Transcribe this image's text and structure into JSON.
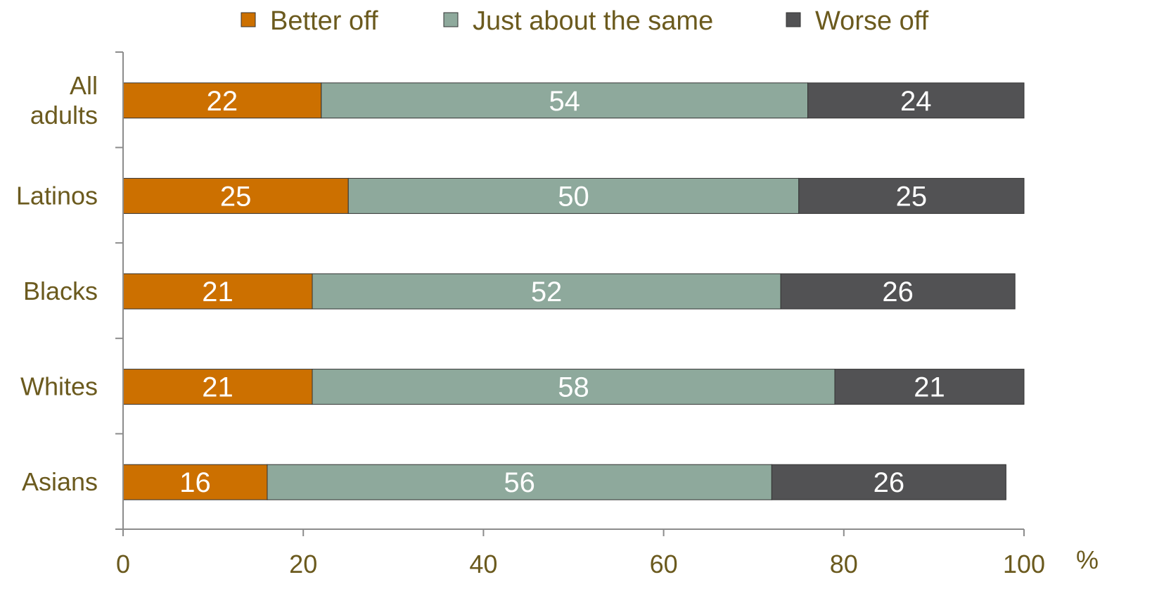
{
  "chart_data": {
    "type": "bar",
    "orientation": "horizontal",
    "stacked": true,
    "categories": [
      "All adults",
      "Latinos",
      "Blacks",
      "Whites",
      "Asians"
    ],
    "category_lines": [
      [
        "All",
        "adults"
      ],
      [
        "Latinos"
      ],
      [
        "Blacks"
      ],
      [
        "Whites"
      ],
      [
        "Asians"
      ]
    ],
    "series": [
      {
        "name": "Better off",
        "color": "#cc7000",
        "values": [
          22,
          25,
          21,
          21,
          16
        ]
      },
      {
        "name": "Just about the same",
        "color": "#8ea99c",
        "values": [
          54,
          50,
          52,
          58,
          56
        ]
      },
      {
        "name": "Worse off",
        "color": "#525254",
        "values": [
          24,
          25,
          26,
          21,
          26
        ]
      }
    ],
    "xlim": [
      0,
      100
    ],
    "xticks": [
      "0",
      "20",
      "40",
      "60",
      "80",
      "100"
    ],
    "unit_label": "%",
    "legend_position": "top",
    "grid": false
  }
}
